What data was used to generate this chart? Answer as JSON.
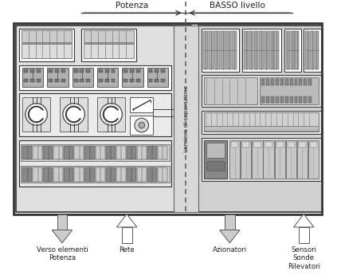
{
  "title_left": "Potenza",
  "title_right": "BASSO livello",
  "label_lamiera": "Lamiera di separazione",
  "label_bottom_1": "Verso elementi\nPotenza",
  "label_bottom_2": "Rete",
  "label_bottom_3": "Azionatori",
  "label_bottom_4": "Sensori\nSonde\nRilevatori",
  "text_color": "#222222",
  "panel_bg": "#f0f0f0",
  "left_bg": "#e0e0e0",
  "right_bg": "#d0d0d0",
  "lam_bg": "#c8c8c8",
  "white": "#ffffff",
  "dark": "#333333",
  "mid": "#888888",
  "light": "#bbbbbb"
}
